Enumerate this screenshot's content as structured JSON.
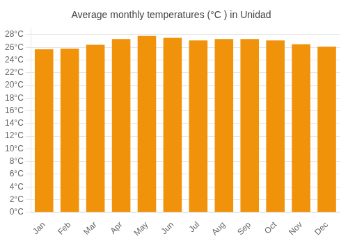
{
  "chart_data": {
    "type": "bar",
    "title": "Average monthly temperatures (°C ) in Unidad",
    "categories": [
      "Jan",
      "Feb",
      "Mar",
      "Apr",
      "May",
      "Jun",
      "Jul",
      "Aug",
      "Sep",
      "Oct",
      "Nov",
      "Dec"
    ],
    "values": [
      25.7,
      25.8,
      26.4,
      27.3,
      27.8,
      27.5,
      27.1,
      27.3,
      27.3,
      27.1,
      26.5,
      26.1
    ],
    "color": "#F0920A",
    "ylim": [
      0,
      29
    ],
    "yticks": [
      {
        "value": 0,
        "label": "0°C"
      },
      {
        "value": 2,
        "label": "2°C"
      },
      {
        "value": 4,
        "label": "4°C"
      },
      {
        "value": 6,
        "label": "6°C"
      },
      {
        "value": 8,
        "label": "8°C"
      },
      {
        "value": 10,
        "label": "10°C"
      },
      {
        "value": 12,
        "label": "12°C"
      },
      {
        "value": 14,
        "label": "14°C"
      },
      {
        "value": 16,
        "label": "16°C"
      },
      {
        "value": 18,
        "label": "18°C"
      },
      {
        "value": 20,
        "label": "20°C"
      },
      {
        "value": 22,
        "label": "22°C"
      },
      {
        "value": 24,
        "label": "24°C"
      },
      {
        "value": 26,
        "label": "26°C"
      },
      {
        "value": 28,
        "label": "28°C"
      }
    ],
    "grid": true
  }
}
